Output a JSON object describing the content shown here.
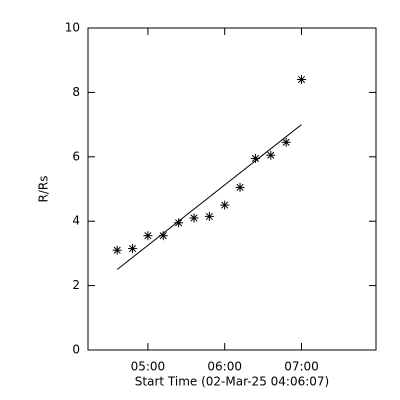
{
  "chart_data": {
    "type": "scatter",
    "xlabel": "Start Time (02-Mar-25 04:06:07)",
    "ylabel": "R/Rs",
    "x": [
      4.6,
      4.8,
      5.0,
      5.2,
      5.4,
      5.6,
      5.8,
      6.0,
      6.2,
      6.4,
      6.6,
      6.8,
      7.0
    ],
    "values": [
      3.1,
      3.15,
      3.55,
      3.55,
      3.95,
      4.1,
      4.15,
      4.5,
      5.05,
      5.95,
      6.05,
      6.45,
      8.4
    ],
    "color": "#000000",
    "fit": {
      "x": [
        4.6,
        7.0
      ],
      "values": [
        2.5,
        7.0
      ]
    },
    "xlim": [
      4.22,
      7.97
    ],
    "ylim": [
      0,
      10
    ],
    "xticks": [
      {
        "value": 5,
        "label": "05:00"
      },
      {
        "value": 6,
        "label": "06:00"
      },
      {
        "value": 7,
        "label": "07:00"
      }
    ],
    "yticks": [
      0,
      2,
      4,
      6,
      8,
      10
    ]
  }
}
